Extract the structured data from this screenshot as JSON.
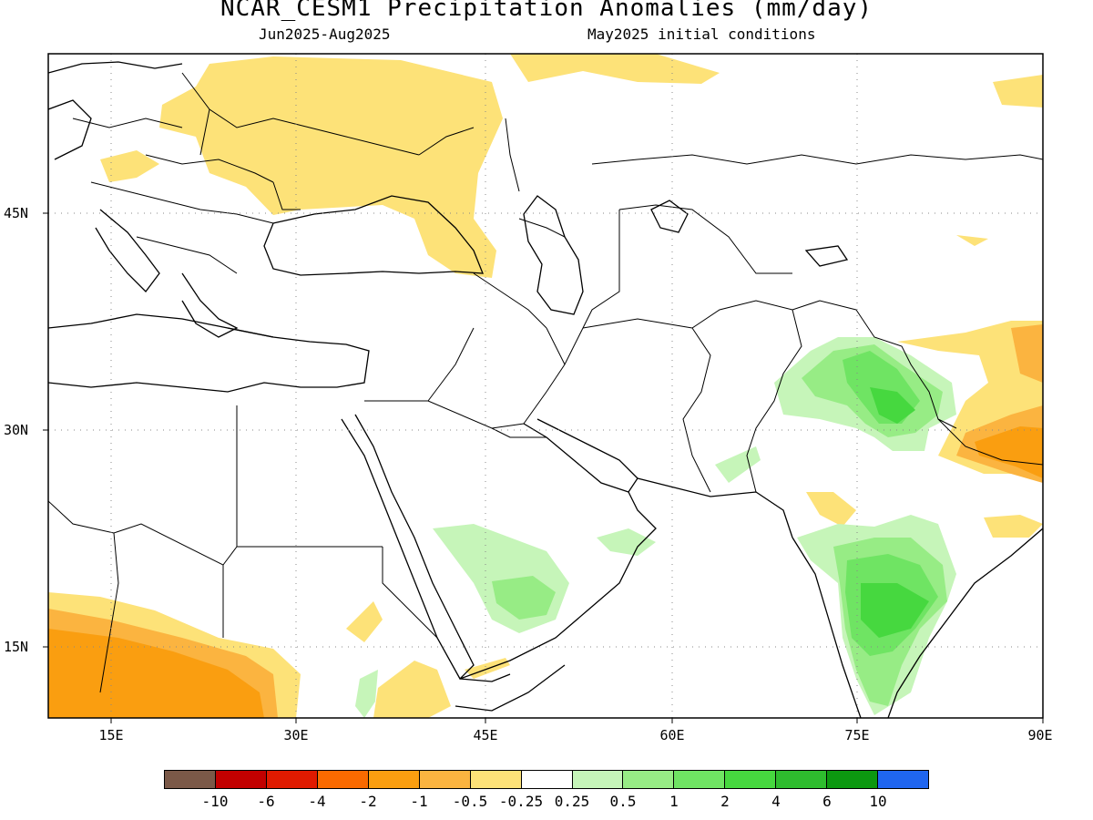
{
  "title": "NCAR_CESM1 Precipitation Anomalies (mm/day)",
  "subtitle_left": "Jun2025-Aug2025",
  "subtitle_right": "May2025 initial conditions",
  "lat_labels": [
    "45N",
    "30N",
    "15N"
  ],
  "lon_labels": [
    "15E",
    "30E",
    "45E",
    "60E",
    "75E",
    "90E"
  ],
  "colorbar": {
    "labels": [
      "-10",
      "-6",
      "-4",
      "-2",
      "-1",
      "-0.5",
      "-0.25",
      "0.25",
      "0.5",
      "1",
      "2",
      "4",
      "6",
      "10"
    ],
    "colors": [
      "#7b5948",
      "#c20000",
      "#e01a00",
      "#fa6a00",
      "#fa9e10",
      "#fbb440",
      "#fde278",
      "#ffffff",
      "#c6f5b9",
      "#97ec85",
      "#6fe463",
      "#46d83f",
      "#2ebc2e",
      "#0c9810",
      "#1f66f0"
    ]
  },
  "map": {
    "extent": {
      "lon_min": 10,
      "lon_max": 90,
      "lat_min": 10,
      "lat_max": 55
    }
  }
}
